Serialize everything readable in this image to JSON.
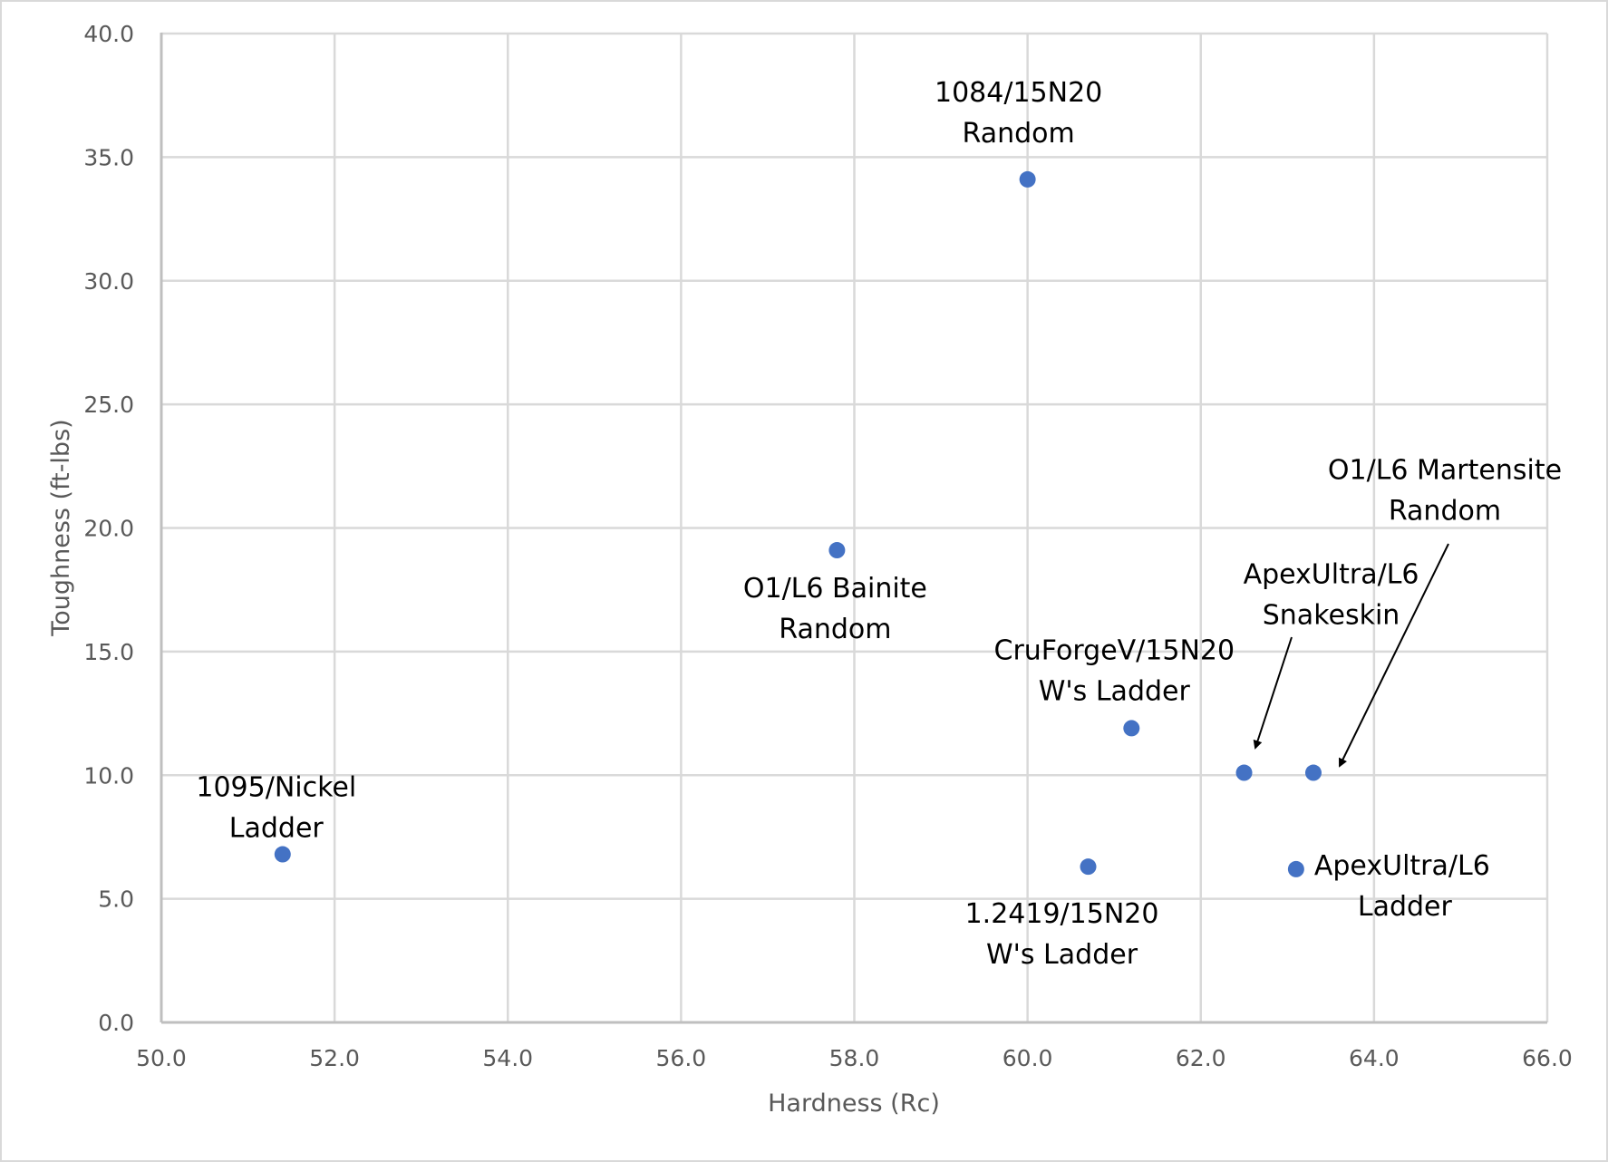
{
  "chart_data": {
    "type": "scatter",
    "title": "",
    "xlabel": "Hardness (Rc)",
    "ylabel": "Toughness (ft-lbs)",
    "xlim": [
      50.0,
      66.0
    ],
    "ylim": [
      0.0,
      40.0
    ],
    "x_ticks": [
      "50.0",
      "52.0",
      "54.0",
      "56.0",
      "58.0",
      "60.0",
      "62.0",
      "64.0",
      "66.0"
    ],
    "y_ticks": [
      "0.0",
      "5.0",
      "10.0",
      "15.0",
      "20.0",
      "25.0",
      "30.0",
      "35.0",
      "40.0"
    ],
    "grid": true,
    "legend": "none",
    "marker_color": "#4472c4",
    "points": [
      {
        "x": 51.4,
        "y": 6.8,
        "label": [
          "1095/Nickel",
          "Ladder"
        ]
      },
      {
        "x": 57.8,
        "y": 19.1,
        "label": [
          "O1/L6 Bainite",
          "Random"
        ]
      },
      {
        "x": 60.0,
        "y": 34.1,
        "label": [
          "1084/15N20",
          "Random"
        ]
      },
      {
        "x": 60.7,
        "y": 6.3,
        "label": [
          "1.2419/15N20",
          "W's Ladder"
        ]
      },
      {
        "x": 61.2,
        "y": 11.9,
        "label": [
          "CruForgeV/15N20",
          "W's Ladder"
        ]
      },
      {
        "x": 62.5,
        "y": 10.1,
        "label": [
          "ApexUltra/L6",
          "Snakeskin"
        ]
      },
      {
        "x": 63.1,
        "y": 6.2,
        "label": [
          "ApexUltra/L6",
          "Ladder"
        ]
      },
      {
        "x": 63.3,
        "y": 10.1,
        "label": [
          "O1/L6 Martensite",
          "Random"
        ]
      }
    ]
  }
}
